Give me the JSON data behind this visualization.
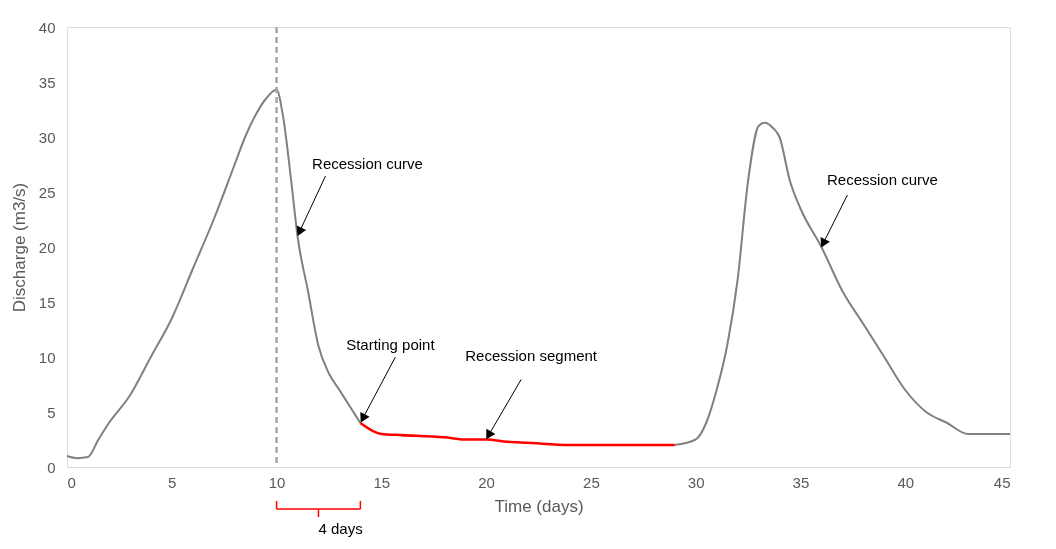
{
  "chart_data": {
    "type": "line",
    "xlabel": "Time (days)",
    "ylabel": "Discharge (m3/s)",
    "xlim": [
      0,
      45
    ],
    "xticks": [
      0,
      5,
      10,
      15,
      20,
      25,
      30,
      35,
      40,
      45
    ],
    "ylim": [
      0,
      40
    ],
    "yticks": [
      0,
      5,
      10,
      15,
      20,
      25,
      30,
      35,
      40
    ],
    "grid": false,
    "marker": "none",
    "line_style": "solid",
    "series": [
      {
        "color": "#808080",
        "x": [
          0,
          0.5,
          1,
          1.5,
          2,
          3,
          4,
          5,
          6,
          7,
          8,
          8.5,
          9,
          9.5,
          10,
          10.3,
          10.7,
          11,
          11.5,
          12,
          12.5,
          13,
          13.5,
          14,
          15,
          29,
          30,
          30.5,
          31,
          31.5,
          32,
          32.5,
          33,
          33.3,
          33.7,
          34,
          34.5,
          35,
          36,
          37,
          38,
          39,
          40,
          41,
          42,
          43,
          44,
          45
        ],
        "values": [
          1.0,
          0.8,
          0.9,
          2.5,
          4,
          6.5,
          10,
          13.5,
          18,
          22.5,
          27.5,
          30,
          32,
          33.5,
          34.3,
          32,
          26,
          21,
          16,
          11,
          8.5,
          7,
          5.5,
          4,
          null,
          2.0,
          2.5,
          4,
          7,
          11,
          17,
          26,
          31,
          31.3,
          30.8,
          30,
          26,
          23.5,
          20,
          16,
          13,
          10,
          7,
          5,
          4,
          3,
          3,
          3
        ]
      },
      {
        "color": "#ff0000",
        "x": [
          14,
          15,
          16,
          18,
          19,
          20,
          21,
          22,
          24,
          25,
          27,
          29
        ],
        "values": [
          4,
          3,
          2.9,
          2.7,
          2.5,
          2.5,
          2.3,
          2.2,
          2.0,
          2.0,
          2.0,
          2.0
        ]
      }
    ],
    "ref_lines": [
      {
        "axis": "x",
        "value": 10,
        "color": "#a6a6a6",
        "line_style": "dashed"
      }
    ],
    "annotations": [
      {
        "text": "Recession curve",
        "x": 11,
        "y": 21
      },
      {
        "text": "Starting point",
        "x": 14,
        "y": 4
      },
      {
        "text": "Recession segment",
        "x": 20,
        "y": 2.5
      },
      {
        "text": "Recession curve",
        "x": 36,
        "y": 20
      },
      "4 days"
    ]
  }
}
